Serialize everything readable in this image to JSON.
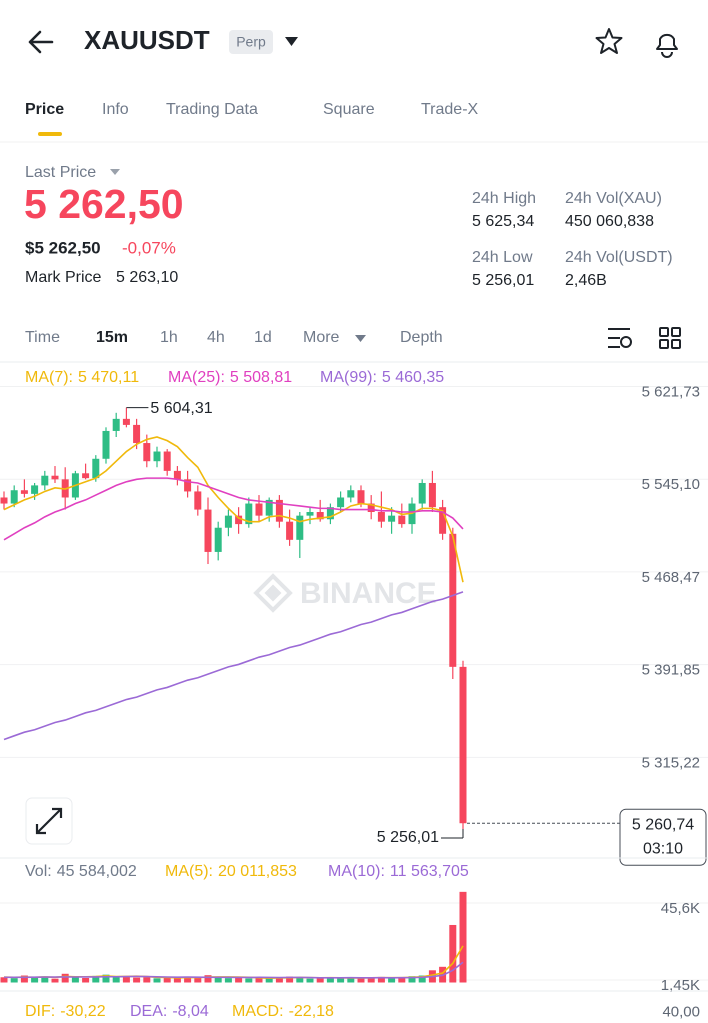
{
  "header": {
    "symbol": "XAUUSDT",
    "badge": "Perp"
  },
  "tabs": [
    "Price",
    "Info",
    "Trading Data",
    "Square",
    "Trade-X"
  ],
  "active_tab": 0,
  "ticker": {
    "last_price_label": "Last Price",
    "last_price": "5 262,50",
    "usd_price": "$5 262,50",
    "change": "-0,07%",
    "mark_price_label": "Mark Price",
    "mark_price": "5 263,10",
    "stats": [
      {
        "label": "24h High",
        "value": "5 625,34"
      },
      {
        "label": "24h Vol(XAU)",
        "value": "450 060,838"
      },
      {
        "label": "24h Low",
        "value": "5 256,01"
      },
      {
        "label": "24h Vol(USDT)",
        "value": "2,46B"
      }
    ]
  },
  "intervals": [
    "Time",
    "15m",
    "1h",
    "4h",
    "1d",
    "More",
    "Depth"
  ],
  "active_interval": 1,
  "chart_data": [
    {
      "type": "candlestick",
      "watermark": "BINANCE",
      "up_color": "#2ebd85",
      "down_color": "#f6465d",
      "grid": true,
      "ylim": [
        5232,
        5642
      ],
      "yticks": [
        {
          "value": 5621.73,
          "label": "5 621,73"
        },
        {
          "value": 5545.1,
          "label": "5 545,10"
        },
        {
          "value": 5468.47,
          "label": "5 468,47"
        },
        {
          "value": 5391.85,
          "label": "5 391,85"
        },
        {
          "value": 5315.22,
          "label": "5 315,22"
        }
      ],
      "high_label": {
        "value": 5604.31,
        "label": "5 604,31"
      },
      "low_label": {
        "value": 5256.01,
        "label": "5 256,01"
      },
      "last": {
        "value": 5260.74,
        "label": "5 260,74",
        "countdown": "03:10"
      },
      "candles": [
        [
          5530,
          5535,
          5520,
          5525
        ],
        [
          5525,
          5540,
          5522,
          5536
        ],
        [
          5536,
          5545,
          5530,
          5533
        ],
        [
          5533,
          5542,
          5528,
          5540
        ],
        [
          5540,
          5552,
          5536,
          5548
        ],
        [
          5548,
          5556,
          5542,
          5545
        ],
        [
          5545,
          5555,
          5520,
          5530
        ],
        [
          5530,
          5552,
          5528,
          5550
        ],
        [
          5550,
          5558,
          5545,
          5546
        ],
        [
          5546,
          5565,
          5543,
          5562
        ],
        [
          5562,
          5588,
          5558,
          5585
        ],
        [
          5585,
          5600,
          5580,
          5595
        ],
        [
          5595,
          5604.31,
          5588,
          5590
        ],
        [
          5590,
          5595,
          5570,
          5575
        ],
        [
          5575,
          5582,
          5555,
          5560
        ],
        [
          5560,
          5572,
          5555,
          5568
        ],
        [
          5568,
          5570,
          5548,
          5552
        ],
        [
          5552,
          5556,
          5540,
          5545
        ],
        [
          5545,
          5552,
          5530,
          5535
        ],
        [
          5535,
          5540,
          5515,
          5520
        ],
        [
          5520,
          5530,
          5475,
          5485
        ],
        [
          5485,
          5510,
          5478,
          5505
        ],
        [
          5505,
          5520,
          5498,
          5515
        ],
        [
          5515,
          5522,
          5500,
          5508
        ],
        [
          5508,
          5530,
          5505,
          5525
        ],
        [
          5525,
          5532,
          5510,
          5515
        ],
        [
          5515,
          5530,
          5510,
          5528
        ],
        [
          5528,
          5532,
          5505,
          5510
        ],
        [
          5510,
          5520,
          5490,
          5495
        ],
        [
          5495,
          5518,
          5480,
          5515
        ],
        [
          5515,
          5522,
          5508,
          5518
        ],
        [
          5518,
          5528,
          5510,
          5512
        ],
        [
          5512,
          5525,
          5508,
          5522
        ],
        [
          5522,
          5535,
          5518,
          5530
        ],
        [
          5530,
          5540,
          5526,
          5536
        ],
        [
          5536,
          5540,
          5522,
          5525
        ],
        [
          5525,
          5532,
          5512,
          5518
        ],
        [
          5518,
          5535,
          5505,
          5510
        ],
        [
          5510,
          5522,
          5500,
          5515
        ],
        [
          5515,
          5525,
          5505,
          5508
        ],
        [
          5508,
          5530,
          5500,
          5525
        ],
        [
          5525,
          5545,
          5520,
          5542
        ],
        [
          5542,
          5552,
          5518,
          5522
        ],
        [
          5522,
          5528,
          5495,
          5500
        ],
        [
          5500,
          5505,
          5380,
          5390
        ],
        [
          5390,
          5395,
          5256.01,
          5260.74
        ]
      ],
      "series": [
        {
          "name": "MA(7):",
          "current": "5 470,11",
          "color": "#f0b90b",
          "values": [
            5520,
            5524,
            5528,
            5531,
            5535,
            5538,
            5537,
            5540,
            5543,
            5546,
            5552,
            5560,
            5568,
            5574,
            5578,
            5580,
            5577,
            5572,
            5563,
            5555,
            5540,
            5530,
            5521,
            5513,
            5510,
            5510,
            5514,
            5515,
            5513,
            5510,
            5512,
            5513,
            5514,
            5518,
            5523,
            5525,
            5524,
            5522,
            5520,
            5516,
            5517,
            5521,
            5521,
            5519,
            5498,
            5460
          ]
        },
        {
          "name": "MA(25):",
          "current": "5 508,81",
          "color": "#e040c0",
          "values": [
            5495,
            5500,
            5505,
            5509,
            5514,
            5518,
            5521,
            5525,
            5528,
            5532,
            5536,
            5540,
            5543,
            5545,
            5546,
            5546,
            5546,
            5545,
            5543,
            5542,
            5539,
            5536,
            5533,
            5530,
            5528,
            5527,
            5526,
            5525,
            5524,
            5523,
            5522,
            5521,
            5521,
            5520,
            5520,
            5520,
            5520,
            5519,
            5519,
            5518,
            5518,
            5519,
            5519,
            5518,
            5513,
            5504
          ]
        },
        {
          "name": "MA(99):",
          "current": "5 460,35",
          "color": "#9b6ad6",
          "values": [
            5330,
            5333,
            5336,
            5338,
            5341,
            5344,
            5346,
            5349,
            5352,
            5354,
            5357,
            5360,
            5363,
            5365,
            5368,
            5371,
            5373,
            5376,
            5379,
            5381,
            5384,
            5387,
            5390,
            5392,
            5395,
            5398,
            5400,
            5403,
            5406,
            5408,
            5411,
            5414,
            5417,
            5419,
            5422,
            5425,
            5427,
            5430,
            5433,
            5435,
            5438,
            5441,
            5444,
            5446,
            5449,
            5452
          ]
        }
      ]
    },
    {
      "type": "volume",
      "label": "Vol:",
      "current": "45 584,002",
      "grid": true,
      "ylim": [
        0,
        58800
      ],
      "yticks": [
        {
          "value": 45600,
          "label": "45,6K"
        },
        {
          "value": 1450,
          "label": "1,45K"
        }
      ],
      "values": [
        3000,
        2500,
        4000,
        2800,
        3500,
        2200,
        5000,
        3000,
        2600,
        3800,
        4500,
        3200,
        3600,
        2800,
        3000,
        2400,
        2600,
        2900,
        3300,
        2700,
        4200,
        3100,
        2500,
        2800,
        2300,
        2600,
        2400,
        2900,
        3400,
        3000,
        2200,
        2500,
        2700,
        3100,
        2600,
        2300,
        2800,
        3200,
        2900,
        2700,
        3600,
        4000,
        7000,
        9000,
        33000,
        52000
      ],
      "series": [
        {
          "name": "MA(5):",
          "current": "20 011,853",
          "color": "#f0b90b",
          "values": [
            3100,
            3000,
            3100,
            3000,
            3200,
            3000,
            3500,
            3300,
            3300,
            3400,
            3800,
            3400,
            3500,
            3600,
            3400,
            3000,
            2900,
            2700,
            2800,
            2800,
            3100,
            3200,
            3200,
            3100,
            3000,
            2700,
            2500,
            2600,
            2700,
            2900,
            2800,
            2700,
            2800,
            2700,
            2600,
            2600,
            2700,
            2800,
            2800,
            2800,
            3000,
            3300,
            4300,
            5400,
            11000,
            21000
          ]
        },
        {
          "name": "MA(10):",
          "current": "11 563,705",
          "color": "#9b6ad6",
          "values": [
            3000,
            3000,
            3000,
            3050,
            3100,
            3100,
            3200,
            3150,
            3200,
            3200,
            3300,
            3300,
            3400,
            3450,
            3400,
            3250,
            3150,
            3050,
            3100,
            3050,
            3000,
            2950,
            2950,
            2900,
            2900,
            2950,
            2900,
            2850,
            2900,
            2900,
            2850,
            2700,
            2700,
            2700,
            2750,
            2700,
            2700,
            2750,
            2700,
            2750,
            2800,
            2950,
            3400,
            4100,
            7000,
            11600
          ]
        }
      ]
    },
    {
      "type": "macd",
      "ylim": [
        -60,
        45
      ],
      "yticks": [
        {
          "value": 40,
          "label": "40,00"
        }
      ],
      "series": [
        {
          "name": "DIF:",
          "current": "-30,22",
          "color": "#f0b90b"
        },
        {
          "name": "DEA:",
          "current": "-8,04",
          "color": "#9b6ad6"
        },
        {
          "name": "MACD:",
          "current": "-22,18",
          "color": "#f0b90b"
        }
      ]
    }
  ]
}
